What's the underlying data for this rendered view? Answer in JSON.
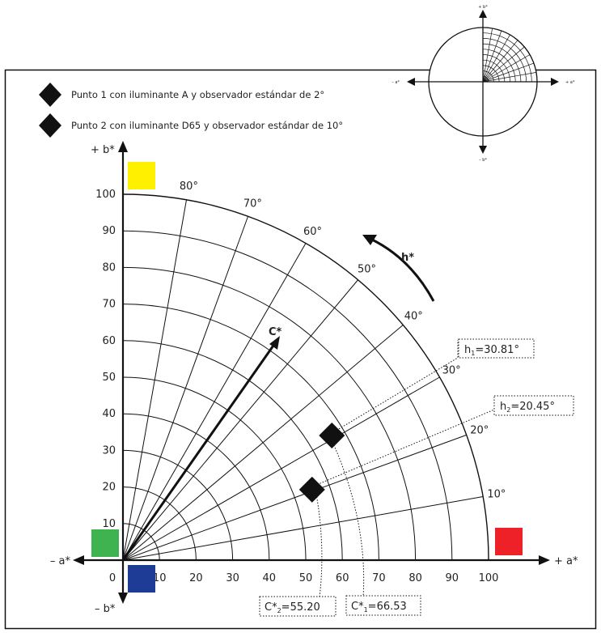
{
  "legend": [
    {
      "text": "Punto 1 con iluminante A y observador estándar de 2°"
    },
    {
      "text": "Punto 2 con iluminante D65 y observador estándar de 10°"
    }
  ],
  "axes": {
    "b_pos": "+ b*",
    "b_neg": "– b*",
    "a_pos": "+ a*",
    "a_neg": "– a*"
  },
  "x_ticks": [
    "0",
    "10",
    "20",
    "30",
    "40",
    "50",
    "60",
    "70",
    "80",
    "90",
    "100"
  ],
  "y_ticks": [
    "10",
    "20",
    "30",
    "40",
    "50",
    "60",
    "70",
    "80",
    "90",
    "100"
  ],
  "angle_labels": [
    "10°",
    "20°",
    "30°",
    "40°",
    "50°",
    "60°",
    "70°",
    "80°"
  ],
  "chroma_label": "C*",
  "hue_label": "h*",
  "annotations": {
    "h1": {
      "main": "h",
      "sub": "1",
      "rest": "=30.81°"
    },
    "h2": {
      "main": "h",
      "sub": "2",
      "rest": "=20.45°"
    },
    "c1": {
      "main": "C*",
      "sub": "1",
      "rest": "=66.53"
    },
    "c2": {
      "main": "C*",
      "sub": "2",
      "rest": "=55.20"
    }
  },
  "inset": {
    "b_pos": "+ b*",
    "b_neg": "– b*",
    "a_pos": "+ a*",
    "a_neg": "– a*"
  },
  "points": [
    {
      "name": "punto-1",
      "chroma": 66.53,
      "hue_deg": 30.81
    },
    {
      "name": "punto-2",
      "chroma": 55.2,
      "hue_deg": 20.45
    }
  ],
  "colors": {
    "yellow": "#fff000",
    "green": "#3fb34f",
    "red": "#ee2128",
    "blue": "#1e3c96",
    "line": "#111111"
  }
}
